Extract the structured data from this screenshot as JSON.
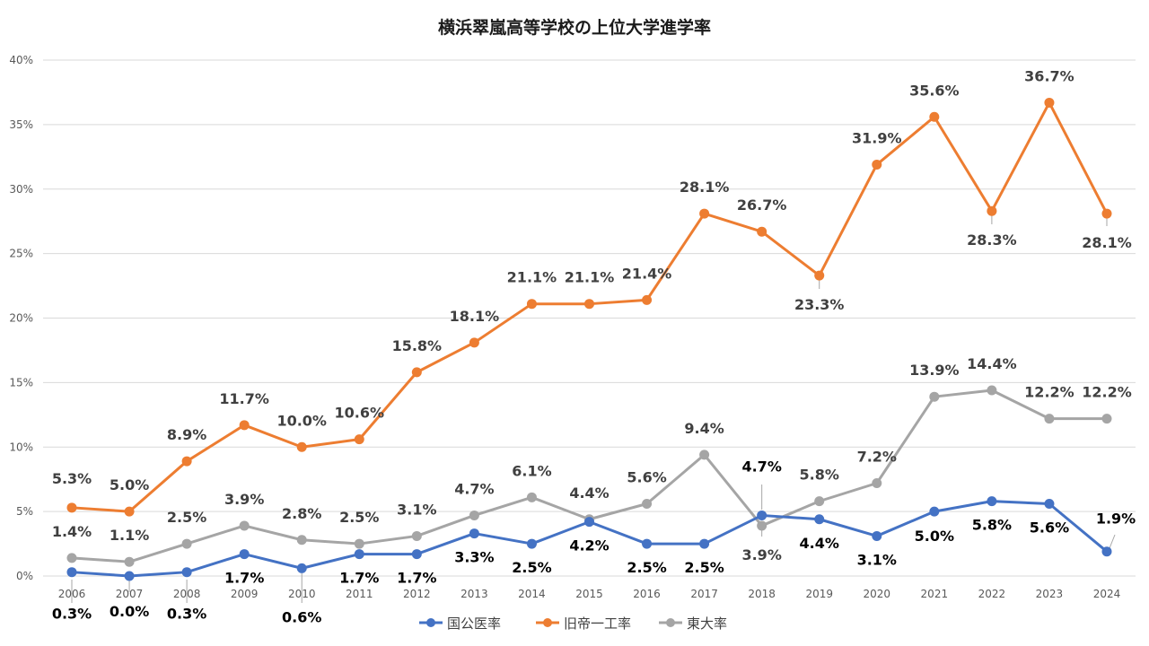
{
  "chart_data": {
    "type": "line",
    "title": "横浜翠嵐高等学校の上位大学進学率",
    "xlabel": "",
    "ylabel": "",
    "categories": [
      "2006",
      "2007",
      "2008",
      "2009",
      "2010",
      "2011",
      "2012",
      "2013",
      "2014",
      "2015",
      "2016",
      "2017",
      "2018",
      "2019",
      "2020",
      "2021",
      "2022",
      "2023",
      "2024"
    ],
    "ylim": [
      0,
      40
    ],
    "yticks": [
      0,
      5,
      10,
      15,
      20,
      25,
      30,
      35,
      40
    ],
    "ytick_labels": [
      "0%",
      "5%",
      "10%",
      "15%",
      "20%",
      "25%",
      "30%",
      "35%",
      "40%"
    ],
    "grid": true,
    "legend_position": "bottom",
    "series": [
      {
        "name": "国公医率",
        "color": "#4472C4",
        "label_color": "#000000",
        "values": [
          0.3,
          0.0,
          0.3,
          1.7,
          0.6,
          1.7,
          1.7,
          3.3,
          2.5,
          4.2,
          2.5,
          2.5,
          4.7,
          4.4,
          3.1,
          5.0,
          5.8,
          5.6,
          1.9
        ],
        "labels": [
          "0.3%",
          "0.0%",
          "0.3%",
          "1.7%",
          "0.6%",
          "1.7%",
          "1.7%",
          "3.3%",
          "2.5%",
          "4.2%",
          "2.5%",
          "2.5%",
          "4.7%",
          "4.4%",
          "3.1%",
          "5.0%",
          "5.8%",
          "5.6%",
          "1.9%"
        ]
      },
      {
        "name": "旧帝一工率",
        "color": "#ED7D31",
        "label_color": "#404040",
        "values": [
          5.3,
          5.0,
          8.9,
          11.7,
          10.0,
          10.6,
          15.8,
          18.1,
          21.1,
          21.1,
          21.4,
          28.1,
          26.7,
          23.3,
          31.9,
          35.6,
          28.3,
          36.7,
          28.1
        ],
        "labels": [
          "5.3%",
          "5.0%",
          "8.9%",
          "11.7%",
          "10.0%",
          "10.6%",
          "15.8%",
          "18.1%",
          "21.1%",
          "21.1%",
          "21.4%",
          "28.1%",
          "26.7%",
          "23.3%",
          "31.9%",
          "35.6%",
          "28.3%",
          "36.7%",
          "28.1%"
        ]
      },
      {
        "name": "東大率",
        "color": "#A5A5A5",
        "label_color": "#404040",
        "values": [
          1.4,
          1.1,
          2.5,
          3.9,
          2.8,
          2.5,
          3.1,
          4.7,
          6.1,
          4.4,
          5.6,
          9.4,
          3.9,
          5.8,
          7.2,
          13.9,
          14.4,
          12.2,
          12.2
        ],
        "labels": [
          "1.4%",
          "1.1%",
          "2.5%",
          "3.9%",
          "2.8%",
          "2.5%",
          "3.1%",
          "4.7%",
          "6.1%",
          "4.4%",
          "5.6%",
          "9.4%",
          "3.9%",
          "5.8%",
          "7.2%",
          "13.9%",
          "14.4%",
          "12.2%",
          "12.2%"
        ]
      }
    ]
  }
}
